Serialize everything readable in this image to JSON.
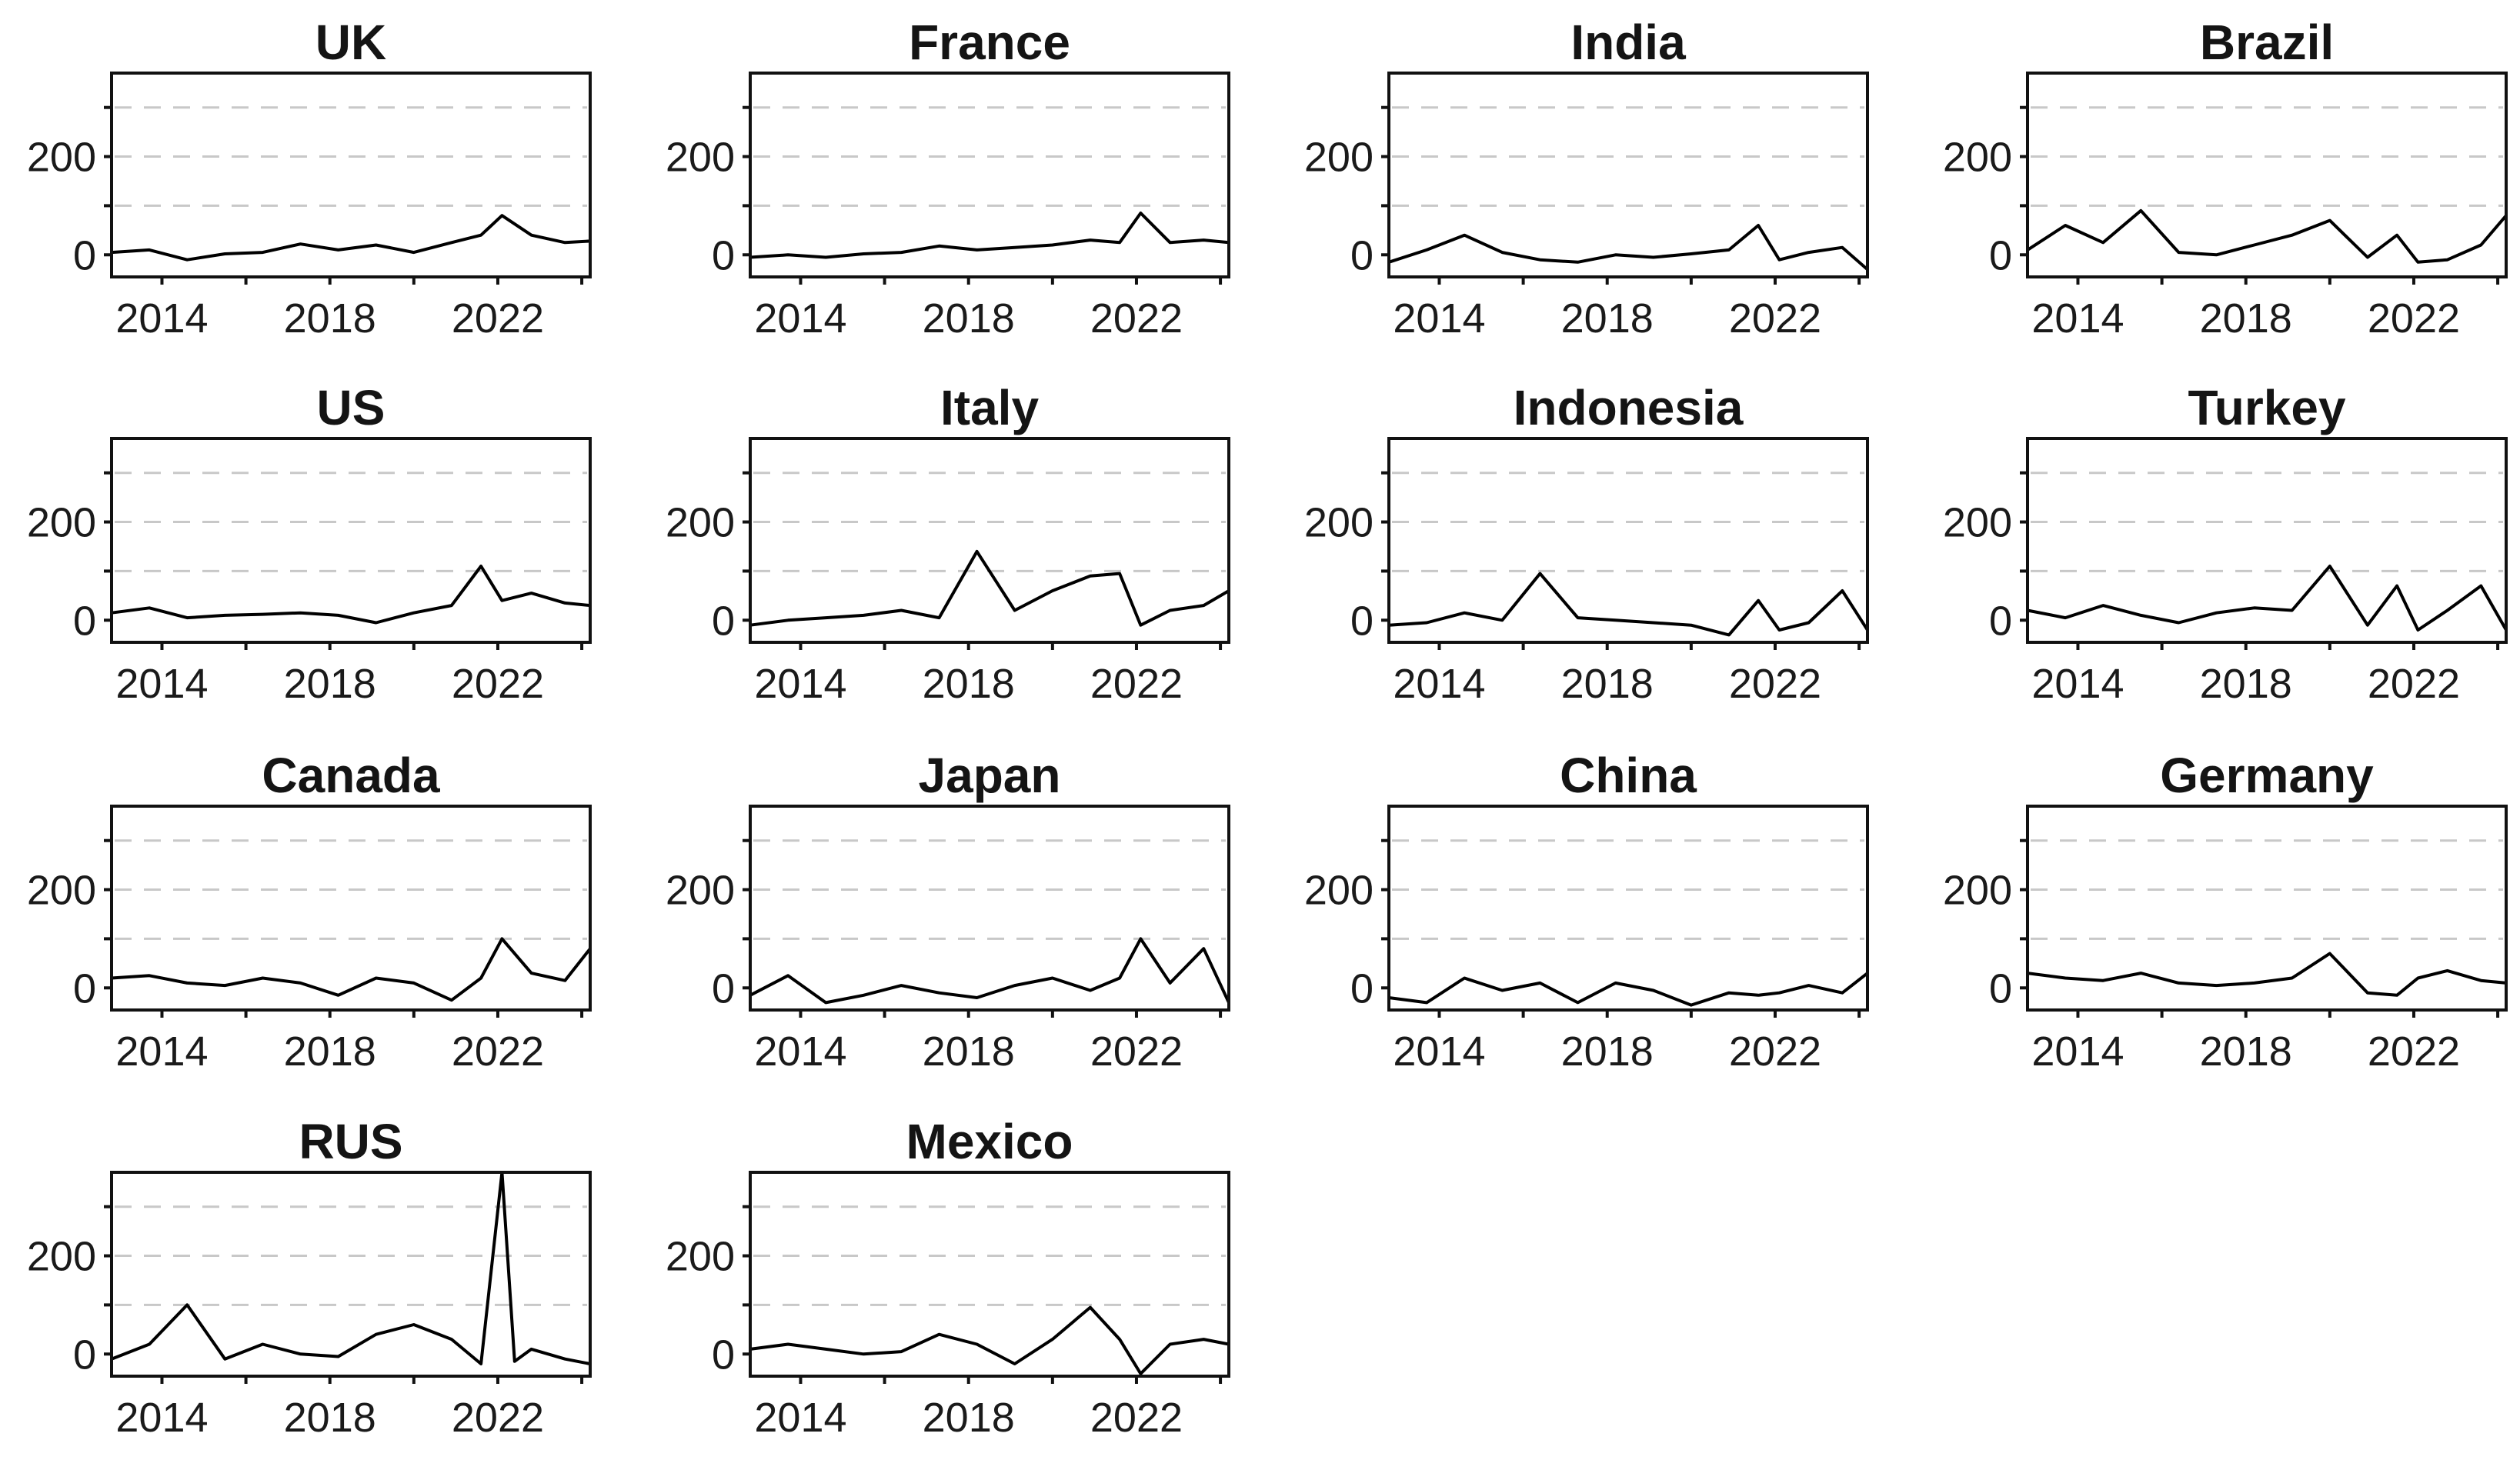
{
  "chart_data": [
    {
      "type": "line",
      "title": "UK",
      "x": [
        2012.8,
        2013.7,
        2014.6,
        2015.5,
        2016.4,
        2017.3,
        2018.2,
        2019.1,
        2020.0,
        2020.9,
        2021.6,
        2022.1,
        2022.8,
        2023.6,
        2024.2
      ],
      "y": [
        5,
        10,
        -10,
        2,
        5,
        22,
        10,
        20,
        5,
        25,
        40,
        80,
        40,
        25,
        28
      ],
      "xticks": [
        2014,
        2018,
        2022
      ],
      "yticks": [
        0,
        200
      ],
      "ylim": [
        -45,
        370
      ],
      "grid": true,
      "xlim": [
        2012.8,
        2024.2
      ]
    },
    {
      "type": "line",
      "title": "France",
      "x": [
        2012.8,
        2013.7,
        2014.6,
        2015.5,
        2016.4,
        2017.3,
        2018.2,
        2019.1,
        2020.0,
        2020.9,
        2021.6,
        2022.1,
        2022.8,
        2023.6,
        2024.2
      ],
      "y": [
        -5,
        0,
        -5,
        2,
        5,
        18,
        10,
        15,
        20,
        30,
        25,
        85,
        25,
        30,
        25
      ],
      "xticks": [
        2014,
        2018,
        2022
      ],
      "yticks": [
        0,
        200
      ],
      "ylim": [
        -45,
        370
      ],
      "grid": true,
      "xlim": [
        2012.8,
        2024.2
      ]
    },
    {
      "type": "line",
      "title": "India",
      "x": [
        2012.8,
        2013.7,
        2014.6,
        2015.5,
        2016.4,
        2017.3,
        2018.2,
        2019.1,
        2020.0,
        2020.9,
        2021.6,
        2022.1,
        2022.8,
        2023.6,
        2024.2
      ],
      "y": [
        -15,
        10,
        40,
        5,
        -10,
        -15,
        0,
        -5,
        2,
        10,
        60,
        -10,
        5,
        15,
        -30
      ],
      "xticks": [
        2014,
        2018,
        2022
      ],
      "yticks": [
        0,
        200
      ],
      "ylim": [
        -45,
        370
      ],
      "grid": true,
      "xlim": [
        2012.8,
        2024.2
      ]
    },
    {
      "type": "line",
      "title": "Brazil",
      "x": [
        2012.8,
        2013.7,
        2014.6,
        2015.5,
        2016.4,
        2017.3,
        2018.2,
        2019.1,
        2020.0,
        2020.9,
        2021.6,
        2022.1,
        2022.8,
        2023.6,
        2024.2
      ],
      "y": [
        10,
        60,
        25,
        90,
        5,
        0,
        20,
        40,
        70,
        -5,
        40,
        -15,
        -10,
        20,
        80
      ],
      "xticks": [
        2014,
        2018,
        2022
      ],
      "yticks": [
        0,
        200
      ],
      "ylim": [
        -45,
        370
      ],
      "grid": true,
      "xlim": [
        2012.8,
        2024.2
      ]
    },
    {
      "type": "line",
      "title": "US",
      "x": [
        2012.8,
        2013.7,
        2014.6,
        2015.5,
        2016.4,
        2017.3,
        2018.2,
        2019.1,
        2020.0,
        2020.9,
        2021.6,
        2022.1,
        2022.8,
        2023.6,
        2024.2
      ],
      "y": [
        15,
        25,
        5,
        10,
        12,
        15,
        10,
        -5,
        15,
        30,
        110,
        40,
        55,
        35,
        30
      ],
      "xticks": [
        2014,
        2018,
        2022
      ],
      "yticks": [
        0,
        200
      ],
      "ylim": [
        -45,
        370
      ],
      "grid": true,
      "xlim": [
        2012.8,
        2024.2
      ]
    },
    {
      "type": "line",
      "title": "Italy",
      "x": [
        2012.8,
        2013.7,
        2014.6,
        2015.5,
        2016.4,
        2017.3,
        2018.2,
        2019.1,
        2020.0,
        2020.9,
        2021.6,
        2022.1,
        2022.8,
        2023.6,
        2024.2
      ],
      "y": [
        -10,
        0,
        5,
        10,
        20,
        5,
        140,
        20,
        60,
        90,
        95,
        -10,
        20,
        30,
        60
      ],
      "xticks": [
        2014,
        2018,
        2022
      ],
      "yticks": [
        0,
        200
      ],
      "ylim": [
        -45,
        370
      ],
      "grid": true,
      "xlim": [
        2012.8,
        2024.2
      ]
    },
    {
      "type": "line",
      "title": "Indonesia",
      "x": [
        2012.8,
        2013.7,
        2014.6,
        2015.5,
        2016.4,
        2017.3,
        2018.2,
        2019.1,
        2020.0,
        2020.9,
        2021.6,
        2022.1,
        2022.8,
        2023.6,
        2024.2
      ],
      "y": [
        -10,
        -5,
        15,
        0,
        95,
        5,
        0,
        -5,
        -10,
        -30,
        40,
        -20,
        -5,
        60,
        -20
      ],
      "xticks": [
        2014,
        2018,
        2022
      ],
      "yticks": [
        0,
        200
      ],
      "ylim": [
        -45,
        370
      ],
      "grid": true,
      "xlim": [
        2012.8,
        2024.2
      ]
    },
    {
      "type": "line",
      "title": "Turkey",
      "x": [
        2012.8,
        2013.7,
        2014.6,
        2015.5,
        2016.4,
        2017.3,
        2018.2,
        2019.1,
        2020.0,
        2020.9,
        2021.6,
        2022.1,
        2022.8,
        2023.6,
        2024.2
      ],
      "y": [
        20,
        5,
        30,
        10,
        -5,
        15,
        25,
        20,
        110,
        -10,
        70,
        -20,
        20,
        70,
        -20
      ],
      "xticks": [
        2014,
        2018,
        2022
      ],
      "yticks": [
        0,
        200
      ],
      "ylim": [
        -45,
        370
      ],
      "grid": true,
      "xlim": [
        2012.8,
        2024.2
      ]
    },
    {
      "type": "line",
      "title": "Canada",
      "x": [
        2012.8,
        2013.7,
        2014.6,
        2015.5,
        2016.4,
        2017.3,
        2018.2,
        2019.1,
        2020.0,
        2020.9,
        2021.6,
        2022.1,
        2022.8,
        2023.6,
        2024.2
      ],
      "y": [
        20,
        25,
        10,
        5,
        20,
        10,
        -15,
        20,
        10,
        -25,
        20,
        100,
        30,
        15,
        80
      ],
      "xticks": [
        2014,
        2018,
        2022
      ],
      "yticks": [
        0,
        200
      ],
      "ylim": [
        -45,
        370
      ],
      "grid": true,
      "xlim": [
        2012.8,
        2024.2
      ]
    },
    {
      "type": "line",
      "title": "Japan",
      "x": [
        2012.8,
        2013.7,
        2014.6,
        2015.5,
        2016.4,
        2017.3,
        2018.2,
        2019.1,
        2020.0,
        2020.9,
        2021.6,
        2022.1,
        2022.8,
        2023.6,
        2024.2
      ],
      "y": [
        -15,
        25,
        -30,
        -15,
        5,
        -10,
        -20,
        5,
        20,
        -5,
        20,
        100,
        10,
        80,
        -30
      ],
      "xticks": [
        2014,
        2018,
        2022
      ],
      "yticks": [
        0,
        200
      ],
      "ylim": [
        -45,
        370
      ],
      "grid": true,
      "xlim": [
        2012.8,
        2024.2
      ]
    },
    {
      "type": "line",
      "title": "China",
      "x": [
        2012.8,
        2013.7,
        2014.6,
        2015.5,
        2016.4,
        2017.3,
        2018.2,
        2019.1,
        2020.0,
        2020.9,
        2021.6,
        2022.1,
        2022.8,
        2023.6,
        2024.2
      ],
      "y": [
        -20,
        -30,
        20,
        -5,
        10,
        -30,
        10,
        -5,
        -35,
        -10,
        -15,
        -10,
        5,
        -10,
        30
      ],
      "xticks": [
        2014,
        2018,
        2022
      ],
      "yticks": [
        0,
        200
      ],
      "ylim": [
        -45,
        370
      ],
      "grid": true,
      "xlim": [
        2012.8,
        2024.2
      ]
    },
    {
      "type": "line",
      "title": "Germany",
      "x": [
        2012.8,
        2013.7,
        2014.6,
        2015.5,
        2016.4,
        2017.3,
        2018.2,
        2019.1,
        2020.0,
        2020.9,
        2021.6,
        2022.1,
        2022.8,
        2023.6,
        2024.2
      ],
      "y": [
        30,
        20,
        15,
        30,
        10,
        5,
        10,
        20,
        70,
        -10,
        -15,
        20,
        35,
        15,
        10
      ],
      "xticks": [
        2014,
        2018,
        2022
      ],
      "yticks": [
        0,
        200
      ],
      "ylim": [
        -45,
        370
      ],
      "grid": true,
      "xlim": [
        2012.8,
        2024.2
      ]
    },
    {
      "type": "line",
      "title": "RUS",
      "x": [
        2012.8,
        2013.7,
        2014.6,
        2015.5,
        2016.4,
        2017.3,
        2018.2,
        2019.1,
        2020.0,
        2020.9,
        2021.6,
        2022.1,
        2022.4,
        2022.8,
        2023.6,
        2024.2
      ],
      "y": [
        -10,
        20,
        100,
        -10,
        20,
        0,
        -5,
        40,
        60,
        30,
        -20,
        370,
        -15,
        10,
        -10,
        -20
      ],
      "xticks": [
        2014,
        2018,
        2022
      ],
      "yticks": [
        0,
        200
      ],
      "ylim": [
        -45,
        370
      ],
      "grid": true,
      "xlim": [
        2012.8,
        2024.2
      ]
    },
    {
      "type": "line",
      "title": "Mexico",
      "x": [
        2012.8,
        2013.7,
        2014.6,
        2015.5,
        2016.4,
        2017.3,
        2018.2,
        2019.1,
        2020.0,
        2020.9,
        2021.6,
        2022.1,
        2022.8,
        2023.6,
        2024.2
      ],
      "y": [
        10,
        20,
        10,
        0,
        5,
        40,
        20,
        -20,
        30,
        95,
        30,
        -40,
        20,
        30,
        20
      ],
      "xticks": [
        2014,
        2018,
        2022
      ],
      "yticks": [
        0,
        200
      ],
      "ylim": [
        -45,
        370
      ],
      "grid": true,
      "xlim": [
        2012.8,
        2024.2
      ]
    }
  ]
}
